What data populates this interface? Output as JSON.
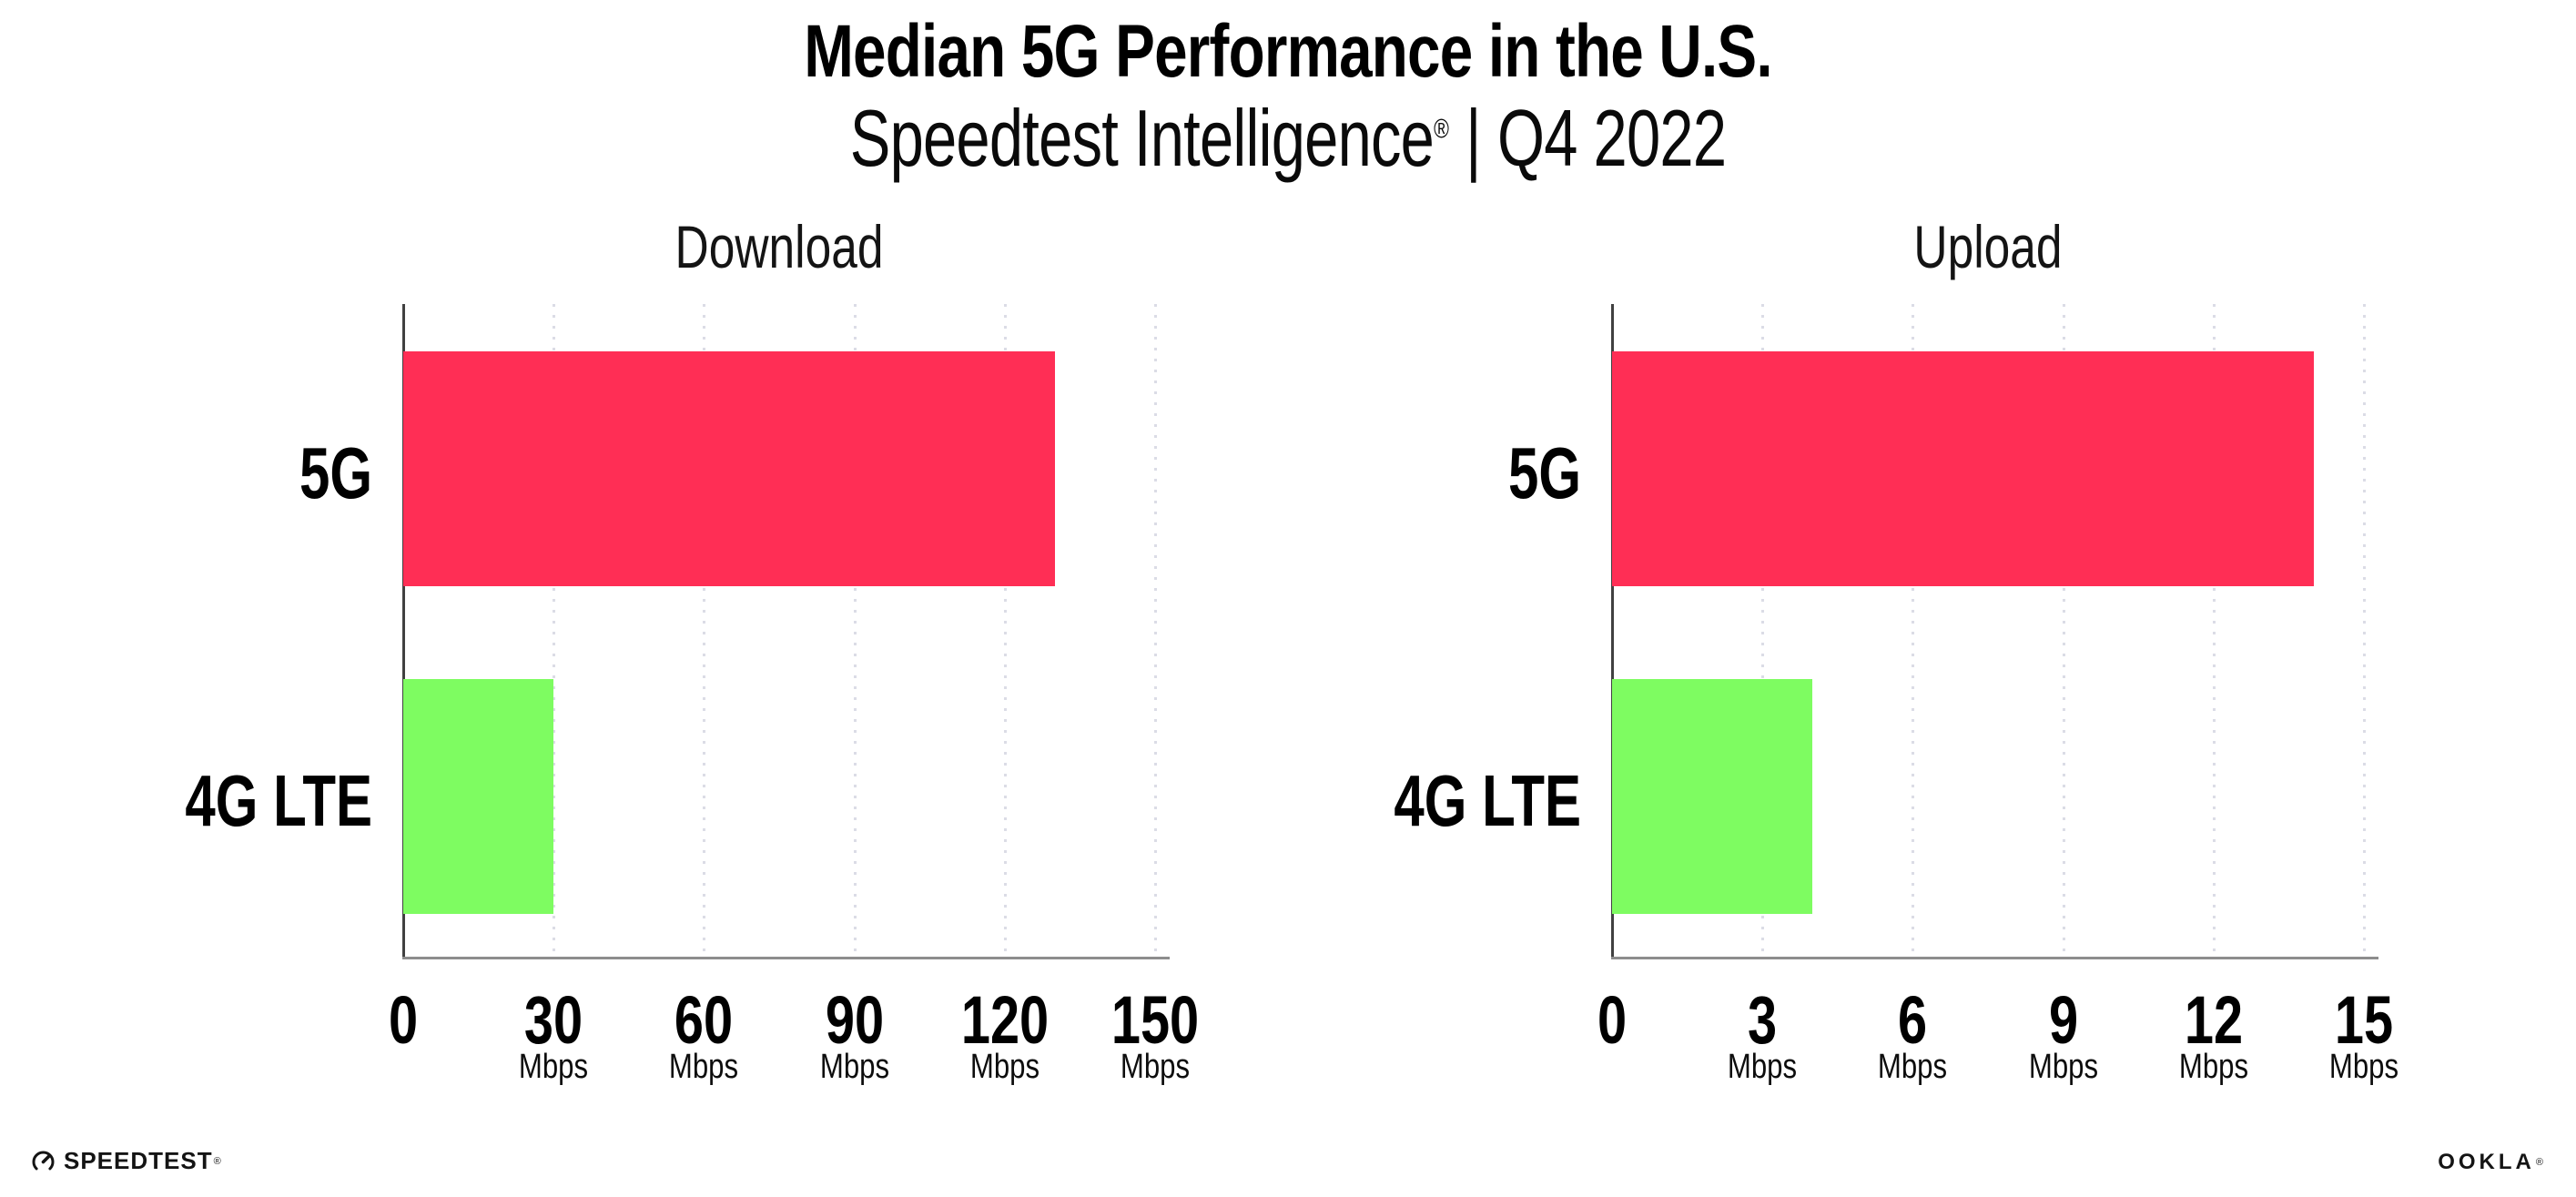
{
  "title": "Median 5G Performance in the U.S.",
  "subtitle": {
    "product": "Speedtest Intelligence",
    "reg_mark": "®",
    "separator": "|",
    "period": "Q4 2022"
  },
  "chart_data": [
    {
      "type": "bar",
      "orientation": "horizontal",
      "title": "Download",
      "categories": [
        "5G",
        "4G LTE"
      ],
      "values": [
        130,
        30
      ],
      "unit": "Mbps",
      "xlim": [
        0,
        150
      ],
      "x_ticks": [
        0,
        30,
        60,
        90,
        120,
        150
      ],
      "bar_colors": [
        "#FF2E55",
        "#7EFC61"
      ],
      "grid": "vertical-dotted",
      "legend": "none"
    },
    {
      "type": "bar",
      "orientation": "horizontal",
      "title": "Upload",
      "categories": [
        "5G",
        "4G LTE"
      ],
      "values": [
        14,
        4
      ],
      "unit": "Mbps",
      "xlim": [
        0,
        15
      ],
      "x_ticks": [
        0,
        3,
        6,
        9,
        12,
        15
      ],
      "bar_colors": [
        "#FF2E55",
        "#7EFC61"
      ],
      "grid": "vertical-dotted",
      "legend": "none"
    }
  ],
  "colors": {
    "bar_5g": "#FF2E55",
    "bar_4g_lte": "#7EFC61",
    "gridline": "#DBDCE6",
    "y_axis": "#414141",
    "x_axis": "#8D8D8D",
    "text": "#000000"
  },
  "footer": {
    "speedtest_label": "SPEEDTEST",
    "speedtest_reg": "®",
    "ookla_label": "OOKLA",
    "ookla_reg": "®"
  }
}
